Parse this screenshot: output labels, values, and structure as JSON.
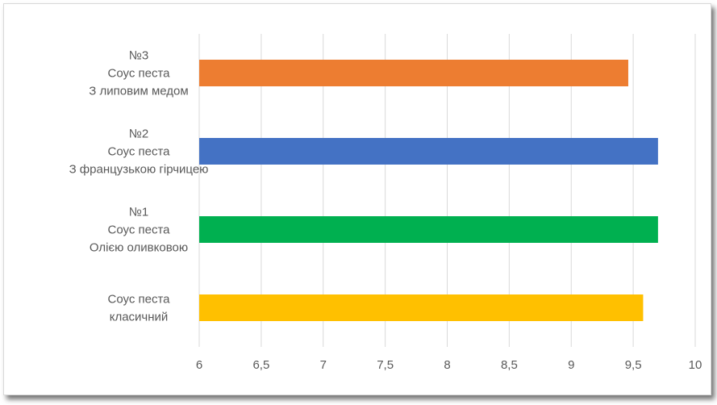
{
  "chart_data": {
    "type": "bar",
    "orientation": "horizontal",
    "categories": [
      [
        "Соус песта",
        "класичний"
      ],
      [
        "№1",
        "Соус песта",
        "Олією оливковою"
      ],
      [
        "№2",
        "Соус песта",
        "З французькою гірчицею"
      ],
      [
        "№3",
        "Соус песта",
        "З липовим медом"
      ]
    ],
    "values": [
      9.58,
      9.7,
      9.7,
      9.46
    ],
    "colors": [
      "#FFC000",
      "#00B050",
      "#4472C4",
      "#ED7D31"
    ],
    "xlim": [
      6,
      10
    ],
    "xticks": [
      "6",
      "6,5",
      "7",
      "7,5",
      "8",
      "8,5",
      "9",
      "9,5",
      "10"
    ],
    "grid": true,
    "gridColor": "#d9d9d9",
    "legend": "none"
  }
}
